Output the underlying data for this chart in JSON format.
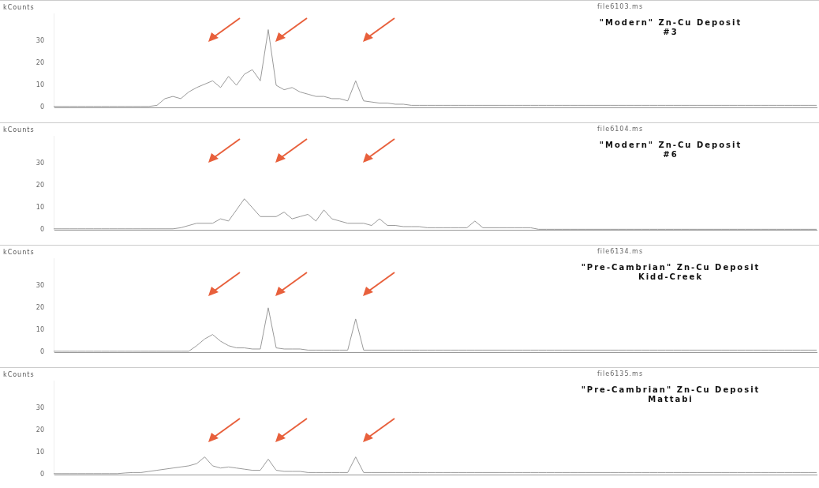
{
  "chart_data": [
    {
      "type": "line",
      "title": "file6103.ms",
      "subtitle": "\"Modern\" Zn-Cu Deposit\n#3",
      "ylabel": "kCounts",
      "color": "#9a9a9a",
      "ylim": [
        0,
        42
      ],
      "yticks": [
        0,
        10,
        20,
        30
      ],
      "grid": false,
      "marker": "none",
      "tick_labels": "y",
      "categories": [
        null,
        null,
        null,
        null,
        null,
        null,
        null,
        null,
        null,
        null,
        null,
        null,
        null,
        null,
        null,
        null,
        null,
        null,
        null,
        null,
        null,
        null,
        null,
        null,
        null,
        null,
        null,
        null,
        null,
        null,
        null,
        null,
        null,
        null,
        null,
        null,
        null,
        null,
        null,
        null,
        null,
        null,
        null,
        null,
        null,
        null,
        null,
        null,
        null,
        null,
        null,
        null,
        null,
        null,
        null,
        null,
        null,
        null,
        null,
        null,
        null,
        null,
        null,
        null,
        null,
        null,
        null,
        null,
        null,
        null,
        null,
        null,
        null,
        null,
        null,
        null,
        null,
        null,
        null,
        null,
        null,
        null,
        null,
        null,
        null,
        null,
        null,
        null,
        null,
        null,
        null,
        null,
        null,
        null,
        null,
        null,
        null
      ],
      "values": [
        0.5,
        0.5,
        0.5,
        0.5,
        0.5,
        0.5,
        0.5,
        0.5,
        0.5,
        0.5,
        0.5,
        0.5,
        0.5,
        1,
        4,
        5,
        4,
        7,
        9,
        null,
        12,
        9,
        14,
        10,
        15,
        17,
        12,
        35,
        10,
        8,
        9,
        7,
        6,
        5,
        5,
        4,
        4,
        3,
        12,
        3,
        2.5,
        2,
        2,
        1.5,
        1.5,
        1,
        1,
        1,
        1,
        1,
        1,
        1,
        1,
        1,
        1,
        1,
        1,
        1,
        1,
        1,
        1,
        1,
        1,
        1,
        1,
        1,
        1,
        1,
        1,
        1,
        1,
        1,
        1,
        1,
        1,
        1,
        1,
        1,
        1,
        1,
        1,
        1,
        1,
        1,
        1,
        1,
        1,
        1,
        1,
        1,
        1,
        1,
        1,
        1,
        1,
        1,
        1
      ]
    },
    {
      "type": "line",
      "title": "file6104.ms",
      "subtitle": "\"Modern\" Zn-Cu Deposit\n#6",
      "ylabel": "kCounts",
      "color": "#9a9a9a",
      "ylim": [
        0,
        42
      ],
      "yticks": [
        0,
        10,
        20,
        30
      ],
      "grid": false,
      "marker": "none",
      "tick_labels": "y",
      "categories": [
        null,
        null,
        null,
        null,
        null,
        null,
        null,
        null,
        null,
        null,
        null,
        null,
        null,
        null,
        null,
        null,
        null,
        null,
        null,
        null,
        null,
        null,
        null,
        null,
        null,
        null,
        null,
        null,
        null,
        null,
        null,
        null,
        null,
        null,
        null,
        null,
        null,
        null,
        null,
        null,
        null,
        null,
        null,
        null,
        null,
        null,
        null,
        null,
        null,
        null,
        null,
        null,
        null,
        null,
        null,
        null,
        null,
        null,
        null,
        null,
        null,
        null,
        null,
        null,
        null,
        null,
        null,
        null,
        null,
        null,
        null,
        null,
        null,
        null,
        null,
        null,
        null,
        null,
        null,
        null,
        null,
        null,
        null,
        null,
        null,
        null,
        null,
        null,
        null,
        null,
        null,
        null,
        null,
        null,
        null,
        null,
        null
      ],
      "values": [
        0.5,
        0.5,
        0.5,
        0.5,
        0.5,
        0.5,
        0.5,
        0.5,
        0.5,
        0.5,
        0.5,
        0.5,
        0.5,
        0.5,
        0.5,
        0.5,
        1,
        2,
        3,
        null,
        3,
        5,
        4,
        9,
        14,
        10,
        6,
        null,
        6,
        8,
        5,
        6,
        7,
        4,
        9,
        5,
        4,
        3,
        null,
        3,
        2,
        5,
        2,
        2,
        1.5,
        1.5,
        1.5,
        1,
        1,
        1,
        1,
        1,
        1,
        4,
        1,
        1,
        1,
        1,
        1,
        1,
        1,
        0.3,
        0.3,
        0.3,
        0.3,
        0.3,
        0.3,
        0.3,
        0.3,
        0.3,
        0.3,
        0.3,
        0.3,
        0.3,
        0.3,
        0.3,
        0.3,
        0.3,
        0.3,
        0.3,
        0.3,
        0.3,
        0.3,
        0.3,
        0.3,
        0.3,
        0.3,
        0.3,
        0.3,
        0.3,
        0.3,
        0.3,
        0.3,
        0.3,
        0.3,
        0.3,
        0.3
      ]
    },
    {
      "type": "line",
      "title": "file6134.ms",
      "subtitle": "\"Pre-Cambrian\" Zn-Cu Deposit\nKidd-Creek",
      "ylabel": "kCounts",
      "color": "#9a9a9a",
      "ylim": [
        0,
        42
      ],
      "yticks": [
        0,
        10,
        20,
        30
      ],
      "grid": false,
      "marker": "none",
      "tick_labels": "y",
      "categories": [
        null,
        null,
        null,
        null,
        null,
        null,
        null,
        null,
        null,
        null,
        null,
        null,
        null,
        null,
        null,
        null,
        null,
        null,
        null,
        null,
        null,
        null,
        null,
        null,
        null,
        null,
        null,
        null,
        null,
        null,
        null,
        null,
        null,
        null,
        null,
        null,
        null,
        null,
        null,
        null,
        null,
        null,
        null,
        null,
        null,
        null,
        null,
        null,
        null,
        null,
        null,
        null,
        null,
        null,
        null,
        null,
        null,
        null,
        null,
        null,
        null,
        null,
        null,
        null,
        null,
        null,
        null,
        null,
        null,
        null,
        null,
        null,
        null,
        null,
        null,
        null,
        null,
        null,
        null,
        null,
        null,
        null,
        null,
        null,
        null,
        null,
        null,
        null,
        null,
        null,
        null,
        null,
        null,
        null,
        null,
        null,
        null
      ],
      "values": [
        0.5,
        0.5,
        0.5,
        0.5,
        0.5,
        0.5,
        0.5,
        0.5,
        0.5,
        0.5,
        0.5,
        0.5,
        0.5,
        0.5,
        0.5,
        0.5,
        0.5,
        0.5,
        3,
        6,
        8,
        5,
        3,
        2,
        2,
        1.5,
        1.5,
        20,
        2,
        1.5,
        1.5,
        1.5,
        1,
        1,
        1,
        1,
        1,
        1,
        15,
        1,
        1,
        1,
        1,
        1,
        1,
        1,
        1,
        1,
        1,
        1,
        1,
        1,
        1,
        1,
        1,
        1,
        1,
        1,
        1,
        1,
        1,
        1,
        1,
        1,
        1,
        1,
        1,
        1,
        1,
        1,
        1,
        1,
        1,
        1,
        1,
        1,
        1,
        1,
        1,
        1,
        1,
        1,
        1,
        1,
        1,
        1,
        1,
        1,
        1,
        1,
        1,
        1,
        1,
        1,
        1,
        1,
        1
      ]
    },
    {
      "type": "line",
      "title": "file6135.ms",
      "subtitle": "\"Pre-Cambrian\" Zn-Cu Deposit\nMattabi",
      "ylabel": "kCounts",
      "color": "#9a9a9a",
      "ylim": [
        0,
        42
      ],
      "yticks": [
        0,
        10,
        20,
        30
      ],
      "grid": false,
      "marker": "none",
      "tick_labels": "y",
      "categories": [
        null,
        null,
        null,
        null,
        null,
        null,
        null,
        null,
        null,
        null,
        null,
        null,
        null,
        null,
        null,
        null,
        null,
        null,
        null,
        null,
        null,
        null,
        null,
        null,
        null,
        null,
        null,
        null,
        null,
        null,
        null,
        null,
        null,
        null,
        null,
        null,
        null,
        null,
        null,
        null,
        null,
        null,
        null,
        null,
        null,
        null,
        null,
        null,
        null,
        null,
        null,
        null,
        null,
        null,
        null,
        null,
        null,
        null,
        null,
        null,
        null,
        null,
        null,
        null,
        null,
        null,
        null,
        null,
        null,
        null,
        null,
        null,
        null,
        null,
        null,
        null,
        null,
        null,
        null,
        null,
        null,
        null,
        null,
        null,
        null,
        null,
        null,
        null,
        null,
        null,
        null,
        null,
        null,
        null,
        null,
        null,
        null
      ],
      "values": [
        0.5,
        0.5,
        0.5,
        0.5,
        0.5,
        0.5,
        0.5,
        0.5,
        0.5,
        0.8,
        1,
        1,
        1.5,
        2,
        2.5,
        3,
        3.5,
        4,
        5,
        8,
        4,
        3,
        3.5,
        3,
        2.5,
        2,
        2,
        7,
        2,
        1.5,
        1.5,
        1.5,
        1,
        1,
        1,
        1,
        1,
        1,
        8,
        1,
        1,
        1,
        1,
        1,
        1,
        1,
        1,
        1,
        1,
        1,
        1,
        1,
        1,
        1,
        1,
        1,
        1,
        1,
        1,
        1,
        1,
        1,
        1,
        1,
        1,
        1,
        1,
        1,
        1,
        1,
        1,
        1,
        1,
        1,
        1,
        1,
        1,
        1,
        1,
        1,
        1,
        1,
        1,
        1,
        1,
        1,
        1,
        1,
        1,
        1,
        1,
        1,
        1,
        1,
        1,
        1,
        1
      ]
    }
  ]
}
